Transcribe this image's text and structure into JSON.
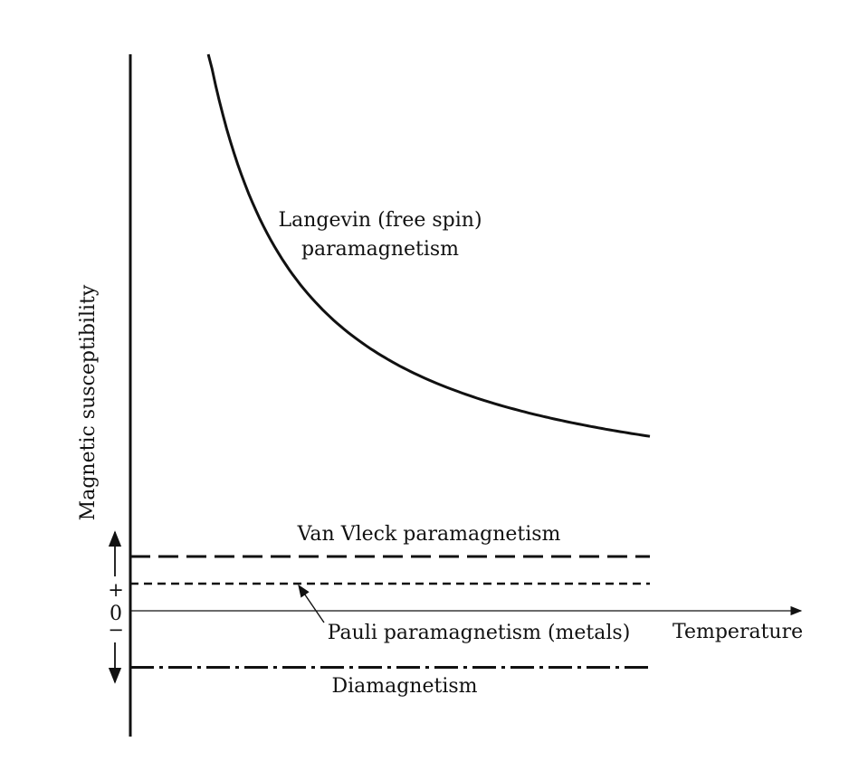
{
  "chart_data": {
    "type": "line",
    "title": "",
    "xlabel": "Temperature",
    "ylabel": "Magnetic susceptibility",
    "y_zero_label": "0",
    "y_plus_label": "+",
    "y_minus_label": "−",
    "grid": false,
    "legend": "none",
    "series": [
      {
        "name": "Langevin (free spin) paramagnetism",
        "label_lines": [
          "Langevin (free spin)",
          "paramagnetism"
        ],
        "style": "solid",
        "model": "curie",
        "curie_constant": 72,
        "x_range": [
          0.15,
          1.0
        ]
      },
      {
        "name": "Van Vleck paramagnetism",
        "style": "long-dash",
        "constant": 0.48,
        "x_range": [
          0.0,
          1.0
        ]
      },
      {
        "name": "Pauli paramagnetism (metals)",
        "style": "short-dash",
        "constant": 0.24,
        "x_range": [
          0.0,
          1.0
        ]
      },
      {
        "name": "Diamagnetism",
        "style": "dash-dot",
        "constant": -0.5,
        "x_range": [
          0.0,
          1.0
        ]
      }
    ]
  }
}
